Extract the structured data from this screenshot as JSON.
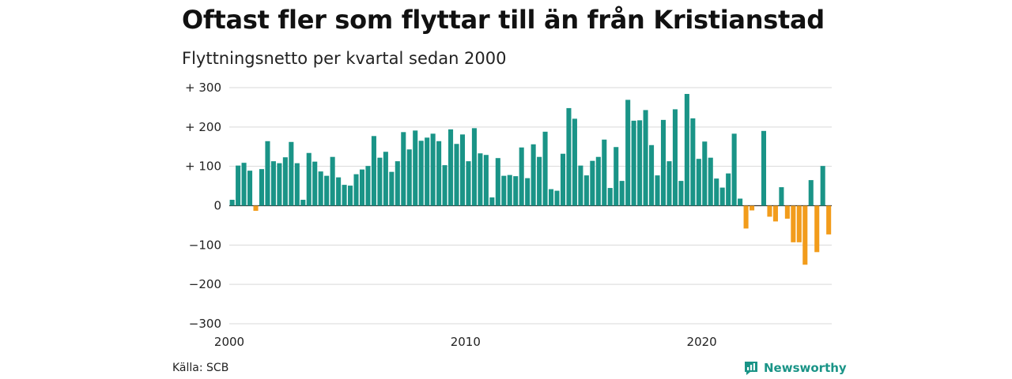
{
  "title": "Oftast fler som flyttar till än från Kristianstad",
  "subtitle": "Flyttningsnetto per kvartal sedan 2000",
  "source": "Källa: SCB",
  "brand": "Newsworthy",
  "colors": {
    "positive": "#1a9487",
    "negative": "#f29c1b",
    "grid": "#d9d9d9",
    "zero": "#333333",
    "brand": "#1a9487"
  },
  "chart_data": {
    "type": "bar",
    "title": "Oftast fler som flyttar till än från Kristianstad",
    "subtitle": "Flyttningsnetto per kvartal sedan 2000",
    "xlabel": "",
    "ylabel": "",
    "ylim": [
      -300,
      300
    ],
    "yticks": [
      300,
      200,
      100,
      0,
      -100,
      -200,
      -300
    ],
    "ytick_labels": [
      "+ 300",
      "+ 200",
      "+ 100",
      "0",
      "−100",
      "−200",
      "−300"
    ],
    "xticks": [
      2000,
      2010,
      2020
    ],
    "xtick_labels": [
      "2000",
      "2010",
      "2020"
    ],
    "x_start": "2000 Q1",
    "grid": true,
    "values": [
      15,
      102,
      109,
      89,
      -13,
      93,
      164,
      113,
      108,
      123,
      162,
      108,
      15,
      134,
      112,
      87,
      76,
      124,
      72,
      53,
      51,
      80,
      92,
      101,
      177,
      122,
      137,
      86,
      113,
      187,
      143,
      191,
      165,
      173,
      183,
      164,
      103,
      194,
      157,
      181,
      113,
      197,
      133,
      129,
      21,
      121,
      76,
      78,
      75,
      148,
      70,
      156,
      124,
      188,
      42,
      38,
      132,
      248,
      221,
      102,
      77,
      114,
      124,
      168,
      45,
      149,
      63,
      269,
      216,
      217,
      243,
      154,
      77,
      218,
      113,
      245,
      63,
      284,
      222,
      119,
      163,
      122,
      69,
      46,
      82,
      183,
      18,
      -58,
      -12,
      0,
      190,
      -28,
      -40,
      47,
      -33,
      -93,
      -93,
      -150,
      65,
      -118,
      101,
      -73
    ]
  }
}
